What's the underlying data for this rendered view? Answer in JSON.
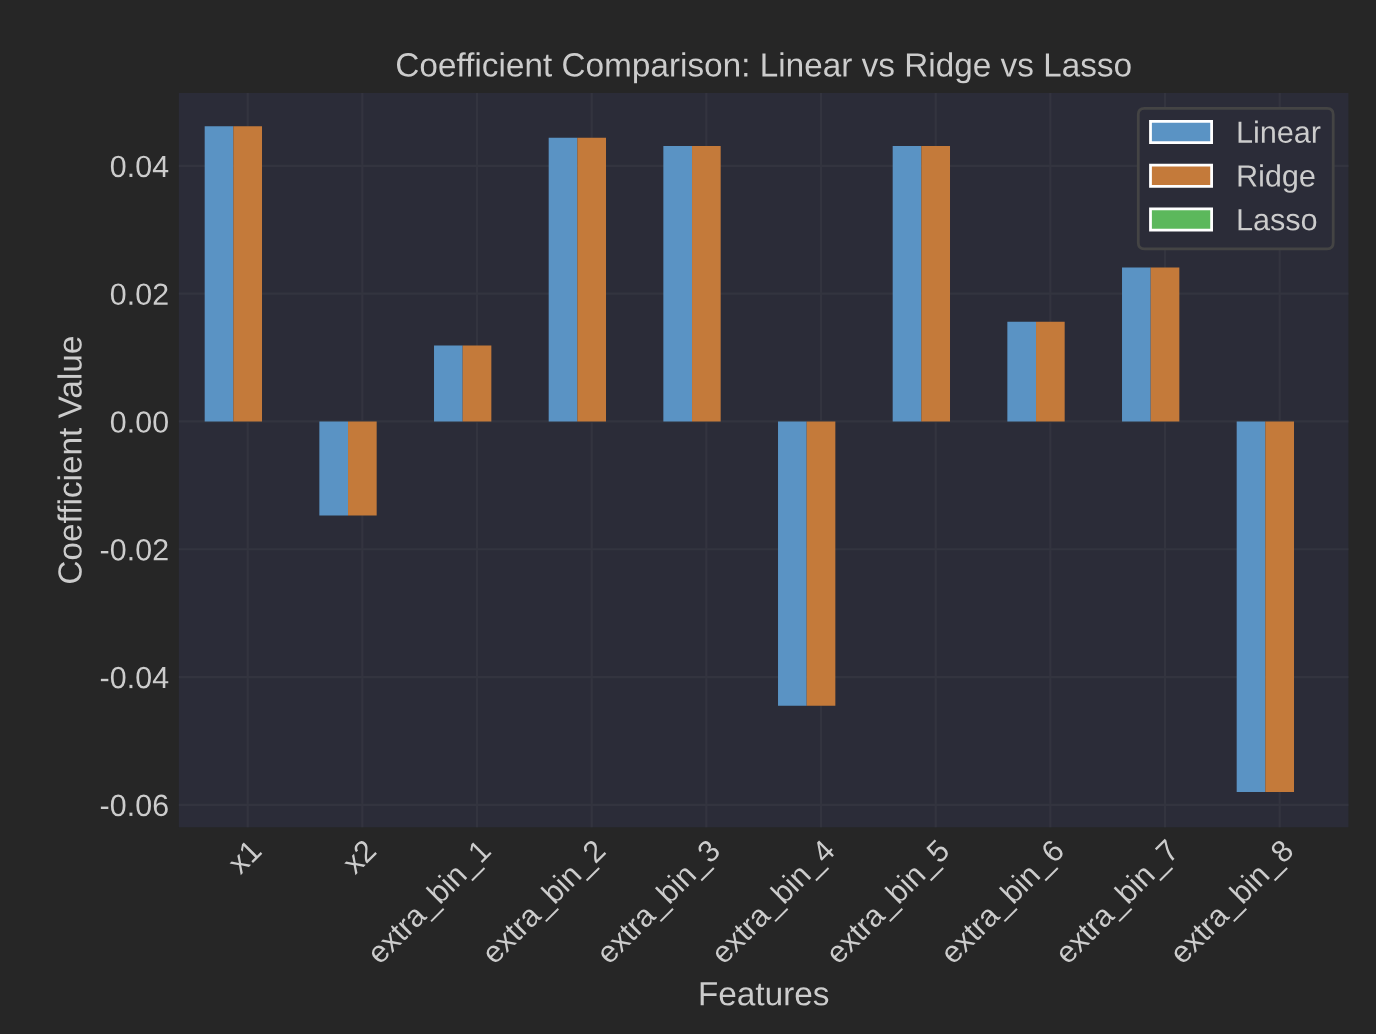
{
  "chart_data": {
    "type": "bar",
    "title": "Coefficient Comparison: Linear vs Ridge vs Lasso",
    "xlabel": "Features",
    "ylabel": "Coefficient Value",
    "categories": [
      "x1",
      "x2",
      "extra_bin_1",
      "extra_bin_2",
      "extra_bin_3",
      "extra_bin_4",
      "extra_bin_5",
      "extra_bin_6",
      "extra_bin_7",
      "extra_bin_8"
    ],
    "series": [
      {
        "name": "Linear",
        "color": "#5a93c4",
        "values": [
          0.0462,
          -0.0147,
          0.0119,
          0.0444,
          0.0431,
          -0.0445,
          0.0431,
          0.0156,
          0.0241,
          -0.058
        ]
      },
      {
        "name": "Ridge",
        "color": "#c47a3a",
        "values": [
          0.0462,
          -0.0147,
          0.0119,
          0.0444,
          0.0431,
          -0.0445,
          0.0431,
          0.0156,
          0.0241,
          -0.058
        ]
      },
      {
        "name": "Lasso",
        "color": "#5cb85c",
        "values": [
          0,
          0,
          0,
          0,
          0,
          0,
          0,
          0,
          0,
          0
        ]
      }
    ],
    "ylim": [
      -0.0635,
      0.0514
    ],
    "yticks": [
      {
        "value": -0.06,
        "label": "-0.06"
      },
      {
        "value": -0.04,
        "label": "-0.04"
      },
      {
        "value": -0.02,
        "label": "-0.02"
      },
      {
        "value": 0,
        "label": "0.00"
      },
      {
        "value": 0.02,
        "label": "0.02"
      },
      {
        "value": 0.04,
        "label": "0.04"
      }
    ],
    "grid": true,
    "legend": "top right"
  }
}
